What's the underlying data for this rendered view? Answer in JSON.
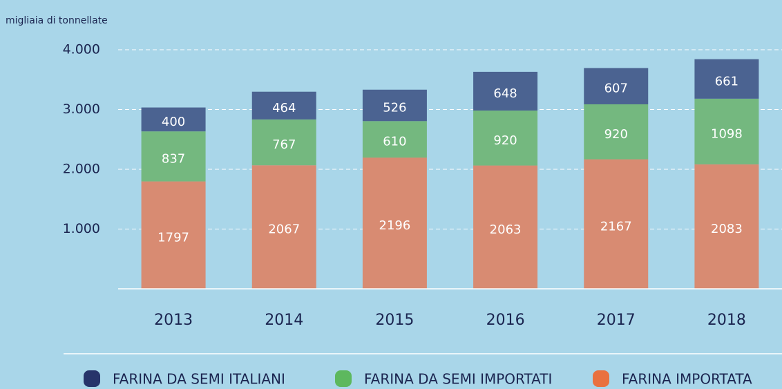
{
  "chart_data": {
    "type": "bar",
    "stacked": true,
    "y_axis_label": "migliaia di tonnellate",
    "categories": [
      "2013",
      "2014",
      "2015",
      "2016",
      "2017",
      "2018"
    ],
    "series": [
      {
        "name": "FARINA DA SEMI ITALIANI",
        "color": "#4b6391",
        "legend_color": "#27346a",
        "values": [
          400,
          464,
          526,
          648,
          607,
          661
        ]
      },
      {
        "name": "FARINA DA SEMI IMPORTATI",
        "color": "#74b87f",
        "legend_color": "#5db85e",
        "values": [
          837,
          767,
          610,
          920,
          920,
          1098
        ]
      },
      {
        "name": "FARINA IMPORTATA",
        "color": "#d88b72",
        "legend_color": "#e9713f",
        "values": [
          1797,
          2067,
          2196,
          2063,
          2167,
          2083
        ]
      }
    ],
    "ylim": [
      0,
      4000
    ],
    "yticks": [
      {
        "value": 1000,
        "label": "1.000"
      },
      {
        "value": 2000,
        "label": "2.000"
      },
      {
        "value": 3000,
        "label": "3.000"
      },
      {
        "value": 4000,
        "label": "4.000"
      }
    ],
    "grid": true
  }
}
